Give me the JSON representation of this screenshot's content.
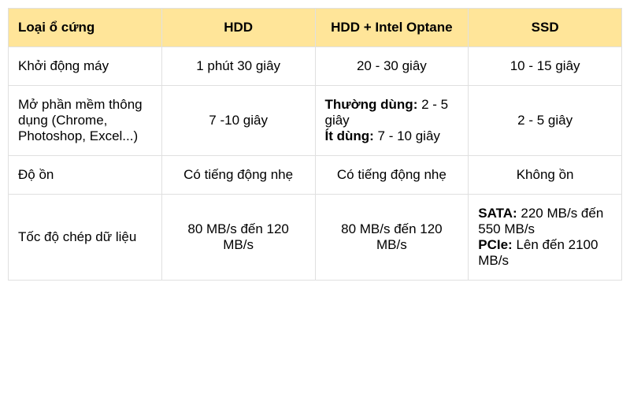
{
  "table": {
    "header_bg": "#ffe599",
    "border_color": "#e0e0e0",
    "font_size": 17,
    "columns": [
      {
        "label": "Loại ổ cứng",
        "align": "left",
        "width": "25%"
      },
      {
        "label": "HDD",
        "align": "center",
        "width": "25%"
      },
      {
        "label": "HDD + Intel Optane",
        "align": "center",
        "width": "25%"
      },
      {
        "label": "SSD",
        "align": "center",
        "width": "25%"
      }
    ],
    "rows": [
      {
        "label": "Khởi động máy",
        "hdd": "1 phút 30 giây",
        "optane": "20 - 30 giây",
        "ssd": "10 - 15 giây"
      },
      {
        "label": "Mở phần mềm thông dụng (Chrome, Photoshop, Excel...)",
        "hdd": "7 -10 giây",
        "optane_lines": [
          {
            "bold": "Thường dùng:",
            "rest": " 2 - 5 giây"
          },
          {
            "bold": "Ít dùng:",
            "rest": " 7 - 10 giây"
          }
        ],
        "ssd": "2 - 5 giây"
      },
      {
        "label": "Độ ồn",
        "hdd": "Có tiếng động nhẹ",
        "optane": "Có tiếng động nhẹ",
        "ssd": "Không ồn"
      },
      {
        "label": "Tốc độ chép dữ liệu",
        "hdd": "80 MB/s đến 120 MB/s",
        "optane": "80 MB/s đến 120 MB/s",
        "ssd_lines": [
          {
            "bold": "SATA:",
            "rest": " 220 MB/s đến 550 MB/s"
          },
          {
            "bold": "PCIe:",
            "rest": " Lên đến 2100 MB/s"
          }
        ]
      }
    ]
  }
}
